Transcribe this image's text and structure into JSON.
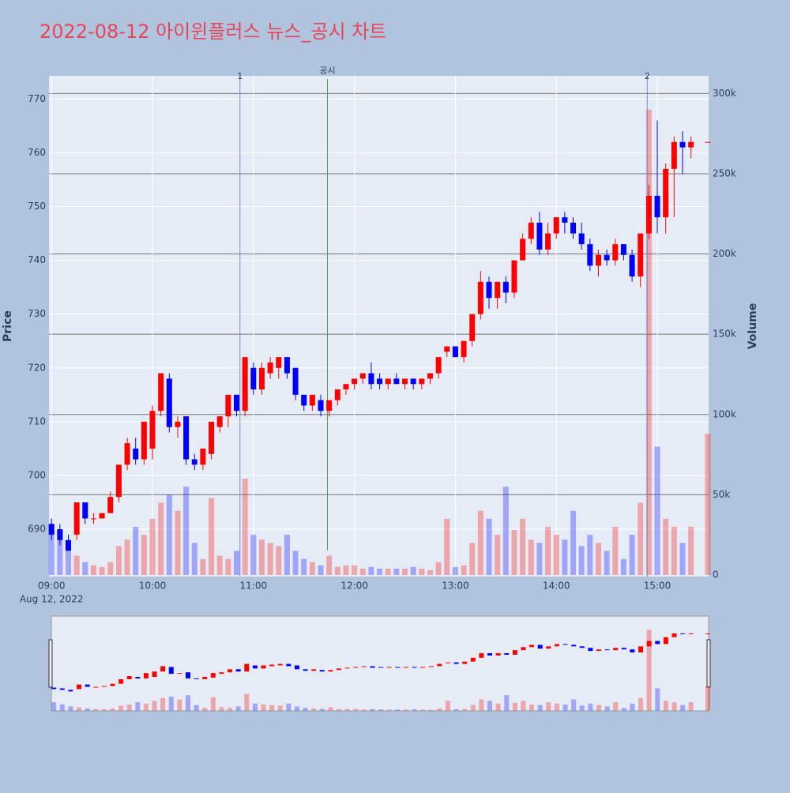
{
  "chart_data": {
    "type": "candlestick",
    "title": "2022-08-12 아이윈플러스 뉴스_공시 차트",
    "y_label": "Price",
    "y2_label": "Volume",
    "x": [
      "2022-08-12 09:00",
      "2022-08-12 09:05",
      "2022-08-12 09:10",
      "2022-08-12 09:15",
      "2022-08-12 09:20",
      "2022-08-12 09:25",
      "2022-08-12 09:30",
      "2022-08-12 09:35",
      "2022-08-12 09:40",
      "2022-08-12 09:45",
      "2022-08-12 09:50",
      "2022-08-12 09:55",
      "2022-08-12 10:00",
      "2022-08-12 10:05",
      "2022-08-12 10:10",
      "2022-08-12 10:15",
      "2022-08-12 10:20",
      "2022-08-12 10:25",
      "2022-08-12 10:30",
      "2022-08-12 10:35",
      "2022-08-12 10:40",
      "2022-08-12 10:45",
      "2022-08-12 10:50",
      "2022-08-12 10:55",
      "2022-08-12 11:00",
      "2022-08-12 11:05",
      "2022-08-12 11:10",
      "2022-08-12 11:15",
      "2022-08-12 11:20",
      "2022-08-12 11:25",
      "2022-08-12 11:30",
      "2022-08-12 11:35",
      "2022-08-12 11:40",
      "2022-08-12 11:45",
      "2022-08-12 11:50",
      "2022-08-12 11:55",
      "2022-08-12 12:00",
      "2022-08-12 12:05",
      "2022-08-12 12:10",
      "2022-08-12 12:15",
      "2022-08-12 12:20",
      "2022-08-12 12:25",
      "2022-08-12 12:30",
      "2022-08-12 12:35",
      "2022-08-12 12:40",
      "2022-08-12 12:45",
      "2022-08-12 12:50",
      "2022-08-12 12:55",
      "2022-08-12 13:00",
      "2022-08-12 13:05",
      "2022-08-12 13:10",
      "2022-08-12 13:15",
      "2022-08-12 13:20",
      "2022-08-12 13:25",
      "2022-08-12 13:30",
      "2022-08-12 13:35",
      "2022-08-12 13:40",
      "2022-08-12 13:45",
      "2022-08-12 13:50",
      "2022-08-12 13:55",
      "2022-08-12 14:00",
      "2022-08-12 14:05",
      "2022-08-12 14:10",
      "2022-08-12 14:15",
      "2022-08-12 14:20",
      "2022-08-12 14:25",
      "2022-08-12 14:30",
      "2022-08-12 14:35",
      "2022-08-12 14:40",
      "2022-08-12 14:45",
      "2022-08-12 14:50",
      "2022-08-12 14:55",
      "2022-08-12 15:00",
      "2022-08-12 15:05",
      "2022-08-12 15:10",
      "2022-08-12 15:15",
      "2022-08-12 15:20",
      "2022-08-12 15:30"
    ],
    "open": [
      691,
      690,
      688,
      689,
      695,
      692,
      692,
      693,
      696,
      702,
      705,
      703,
      705,
      712,
      718,
      709,
      711,
      703,
      702,
      704,
      709,
      711,
      715,
      712,
      720,
      716,
      719,
      720,
      722,
      720,
      715,
      713,
      714,
      712,
      714,
      716,
      717,
      718,
      719,
      718,
      717,
      718,
      717,
      718,
      717,
      718,
      719,
      723,
      724,
      722,
      725,
      730,
      736,
      733,
      736,
      734,
      740,
      744,
      747,
      742,
      745,
      748,
      747,
      745,
      743,
      739,
      741,
      740,
      743,
      741,
      737,
      745,
      752,
      748,
      757,
      762,
      761,
      762
    ],
    "high": [
      692,
      691,
      689,
      695,
      695,
      693,
      693,
      697,
      702,
      707,
      707,
      710,
      713,
      719,
      719,
      711,
      711,
      704,
      705,
      710,
      711,
      715,
      715,
      722,
      721,
      721,
      722,
      722,
      722,
      720,
      715,
      715,
      715,
      714,
      716,
      717,
      718,
      719,
      721,
      719,
      718,
      719,
      718,
      718,
      718,
      719,
      722,
      724,
      724,
      725,
      730,
      738,
      737,
      736,
      737,
      740,
      745,
      748,
      749,
      747,
      748,
      749,
      748,
      747,
      744,
      742,
      742,
      744,
      743,
      742,
      745,
      754,
      766,
      758,
      763,
      764,
      763,
      762
    ],
    "low": [
      688,
      687,
      686,
      688,
      691,
      691,
      692,
      693,
      695,
      701,
      702,
      702,
      703,
      711,
      708,
      707,
      702,
      701,
      701,
      703,
      708,
      709,
      711,
      711,
      715,
      715,
      718,
      718,
      718,
      714,
      712,
      712,
      711,
      711,
      713,
      715,
      716,
      717,
      716,
      716,
      716,
      717,
      716,
      716,
      716,
      717,
      718,
      722,
      722,
      721,
      724,
      729,
      731,
      731,
      732,
      733,
      740,
      743,
      741,
      741,
      744,
      745,
      744,
      742,
      738,
      737,
      739,
      739,
      740,
      736,
      735,
      744,
      745,
      745,
      748,
      756,
      759,
      762
    ],
    "close": [
      689,
      688,
      686,
      695,
      692,
      692,
      693,
      696,
      702,
      706,
      703,
      710,
      712,
      719,
      709,
      710,
      703,
      702,
      705,
      710,
      711,
      715,
      712,
      722,
      716,
      720,
      721,
      722,
      719,
      715,
      713,
      715,
      712,
      714,
      716,
      717,
      718,
      719,
      717,
      717,
      718,
      717,
      718,
      717,
      718,
      719,
      722,
      724,
      722,
      725,
      730,
      736,
      733,
      736,
      734,
      740,
      744,
      747,
      742,
      745,
      748,
      747,
      745,
      743,
      739,
      741,
      740,
      743,
      741,
      737,
      745,
      752,
      748,
      757,
      762,
      761,
      762,
      762
    ],
    "volume": [
      30000,
      22000,
      15000,
      12000,
      8000,
      6000,
      5000,
      8000,
      18000,
      22000,
      30000,
      25000,
      35000,
      45000,
      50000,
      40000,
      55000,
      20000,
      10000,
      48000,
      12000,
      10000,
      15000,
      60000,
      25000,
      22000,
      20000,
      18000,
      25000,
      15000,
      10000,
      8000,
      6000,
      12000,
      5000,
      6000,
      6000,
      4000,
      5000,
      4000,
      4000,
      4000,
      4000,
      5000,
      4000,
      3000,
      8000,
      35000,
      5000,
      6000,
      20000,
      40000,
      35000,
      25000,
      55000,
      28000,
      35000,
      22000,
      20000,
      30000,
      25000,
      22000,
      40000,
      18000,
      25000,
      20000,
      15000,
      30000,
      10000,
      25000,
      45000,
      290000,
      80000,
      35000,
      30000,
      20000,
      30000,
      88000
    ],
    "xlim": [
      "2022-08-12 08:58:30",
      "2022-08-12 15:30:30"
    ],
    "xticks": [
      {
        "value": "2022-08-12 09:00",
        "label": "09:00"
      },
      {
        "value": "2022-08-12 10:00",
        "label": "10:00"
      },
      {
        "value": "2022-08-12 11:00",
        "label": "11:00"
      },
      {
        "value": "2022-08-12 12:00",
        "label": "12:00"
      },
      {
        "value": "2022-08-12 13:00",
        "label": "13:00"
      },
      {
        "value": "2022-08-12 14:00",
        "label": "14:00"
      },
      {
        "value": "2022-08-12 15:00",
        "label": "15:00"
      }
    ],
    "x_date_label": "Aug 12, 2022",
    "ylim": [
      681.2,
      774.3
    ],
    "yticks": [
      690,
      700,
      710,
      720,
      730,
      740,
      750,
      760,
      770
    ],
    "y2lim": [
      -1000,
      311000
    ],
    "y2ticks": [
      0,
      {
        "value": 50000,
        "label": "50k"
      },
      {
        "value": 100000,
        "label": "100k"
      },
      {
        "value": 150000,
        "label": "150k"
      },
      {
        "value": 200000,
        "label": "200k"
      },
      {
        "value": 250000,
        "label": "250k"
      },
      {
        "value": 300000,
        "label": "300k"
      }
    ],
    "up_color": "#ff0000",
    "down_color": "#0000ff",
    "events": [
      {
        "x": "2022-08-12 10:52",
        "label": "1",
        "color": "#6f8fd8"
      },
      {
        "x": "2022-08-12 11:44",
        "label": "공시",
        "color": "#4aa04a"
      },
      {
        "x": "2022-08-12 14:54",
        "label": "2",
        "color": "#6f8fd8"
      }
    ]
  }
}
